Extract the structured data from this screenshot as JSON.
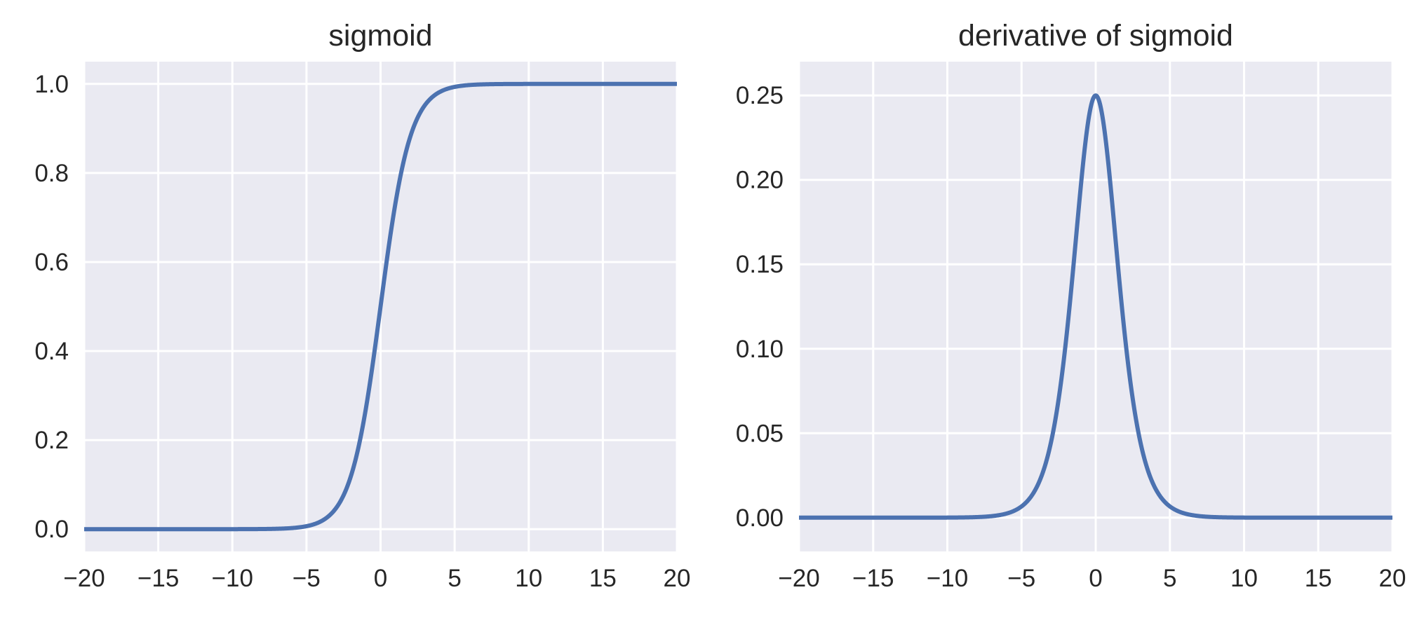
{
  "chart_data": [
    {
      "type": "line",
      "title": "sigmoid",
      "xlabel": "",
      "ylabel": "",
      "function": "sigmoid",
      "xlim": [
        -20,
        20
      ],
      "ylim": [
        -0.05,
        1.05
      ],
      "xticks": [
        -20,
        -15,
        -10,
        -5,
        0,
        5,
        10,
        15,
        20
      ],
      "xtick_labels": [
        "−20",
        "−15",
        "−10",
        "−5",
        "0",
        "5",
        "10",
        "15",
        "20"
      ],
      "yticks": [
        0.0,
        0.2,
        0.4,
        0.6,
        0.8,
        1.0
      ],
      "ytick_labels": [
        "0.0",
        "0.2",
        "0.4",
        "0.6",
        "0.8",
        "1.0"
      ],
      "grid": true,
      "line_color": "#4c72b0",
      "background_color": "#eaeaf2",
      "series": [
        {
          "x": [
            -20,
            -15,
            -10,
            -8,
            -6,
            -5,
            -4,
            -3,
            -2,
            -1.5,
            -1,
            -0.5,
            0,
            0.5,
            1,
            1.5,
            2,
            3,
            4,
            5,
            6,
            8,
            10,
            15,
            20
          ],
          "values": [
            0.0,
            0.0,
            0.0,
            0.0003,
            0.0025,
            0.0067,
            0.018,
            0.047,
            0.119,
            0.182,
            0.269,
            0.378,
            0.5,
            0.622,
            0.731,
            0.818,
            0.881,
            0.953,
            0.982,
            0.9933,
            0.9975,
            0.9997,
            1.0,
            1.0,
            1.0
          ]
        }
      ]
    },
    {
      "type": "line",
      "title": "derivative of sigmoid",
      "xlabel": "",
      "ylabel": "",
      "function": "sigmoid_derivative",
      "xlim": [
        -20,
        20
      ],
      "ylim": [
        -0.02,
        0.27
      ],
      "xticks": [
        -20,
        -15,
        -10,
        -5,
        0,
        5,
        10,
        15,
        20
      ],
      "xtick_labels": [
        "−20",
        "−15",
        "−10",
        "−5",
        "0",
        "5",
        "10",
        "15",
        "20"
      ],
      "yticks": [
        0.0,
        0.05,
        0.1,
        0.15,
        0.2,
        0.25
      ],
      "ytick_labels": [
        "0.00",
        "0.05",
        "0.10",
        "0.15",
        "0.20",
        "0.25"
      ],
      "grid": true,
      "line_color": "#4c72b0",
      "background_color": "#eaeaf2",
      "series": [
        {
          "x": [
            -20,
            -15,
            -10,
            -8,
            -6,
            -5,
            -4,
            -3,
            -2,
            -1.5,
            -1,
            -0.5,
            0,
            0.5,
            1,
            1.5,
            2,
            3,
            4,
            5,
            6,
            8,
            10,
            15,
            20
          ],
          "values": [
            0.0,
            0.0,
            0.0,
            0.0003,
            0.0025,
            0.0066,
            0.0177,
            0.0452,
            0.105,
            0.149,
            0.197,
            0.235,
            0.25,
            0.235,
            0.197,
            0.149,
            0.105,
            0.0452,
            0.0177,
            0.0066,
            0.0025,
            0.0003,
            0.0,
            0.0,
            0.0
          ]
        }
      ]
    }
  ]
}
